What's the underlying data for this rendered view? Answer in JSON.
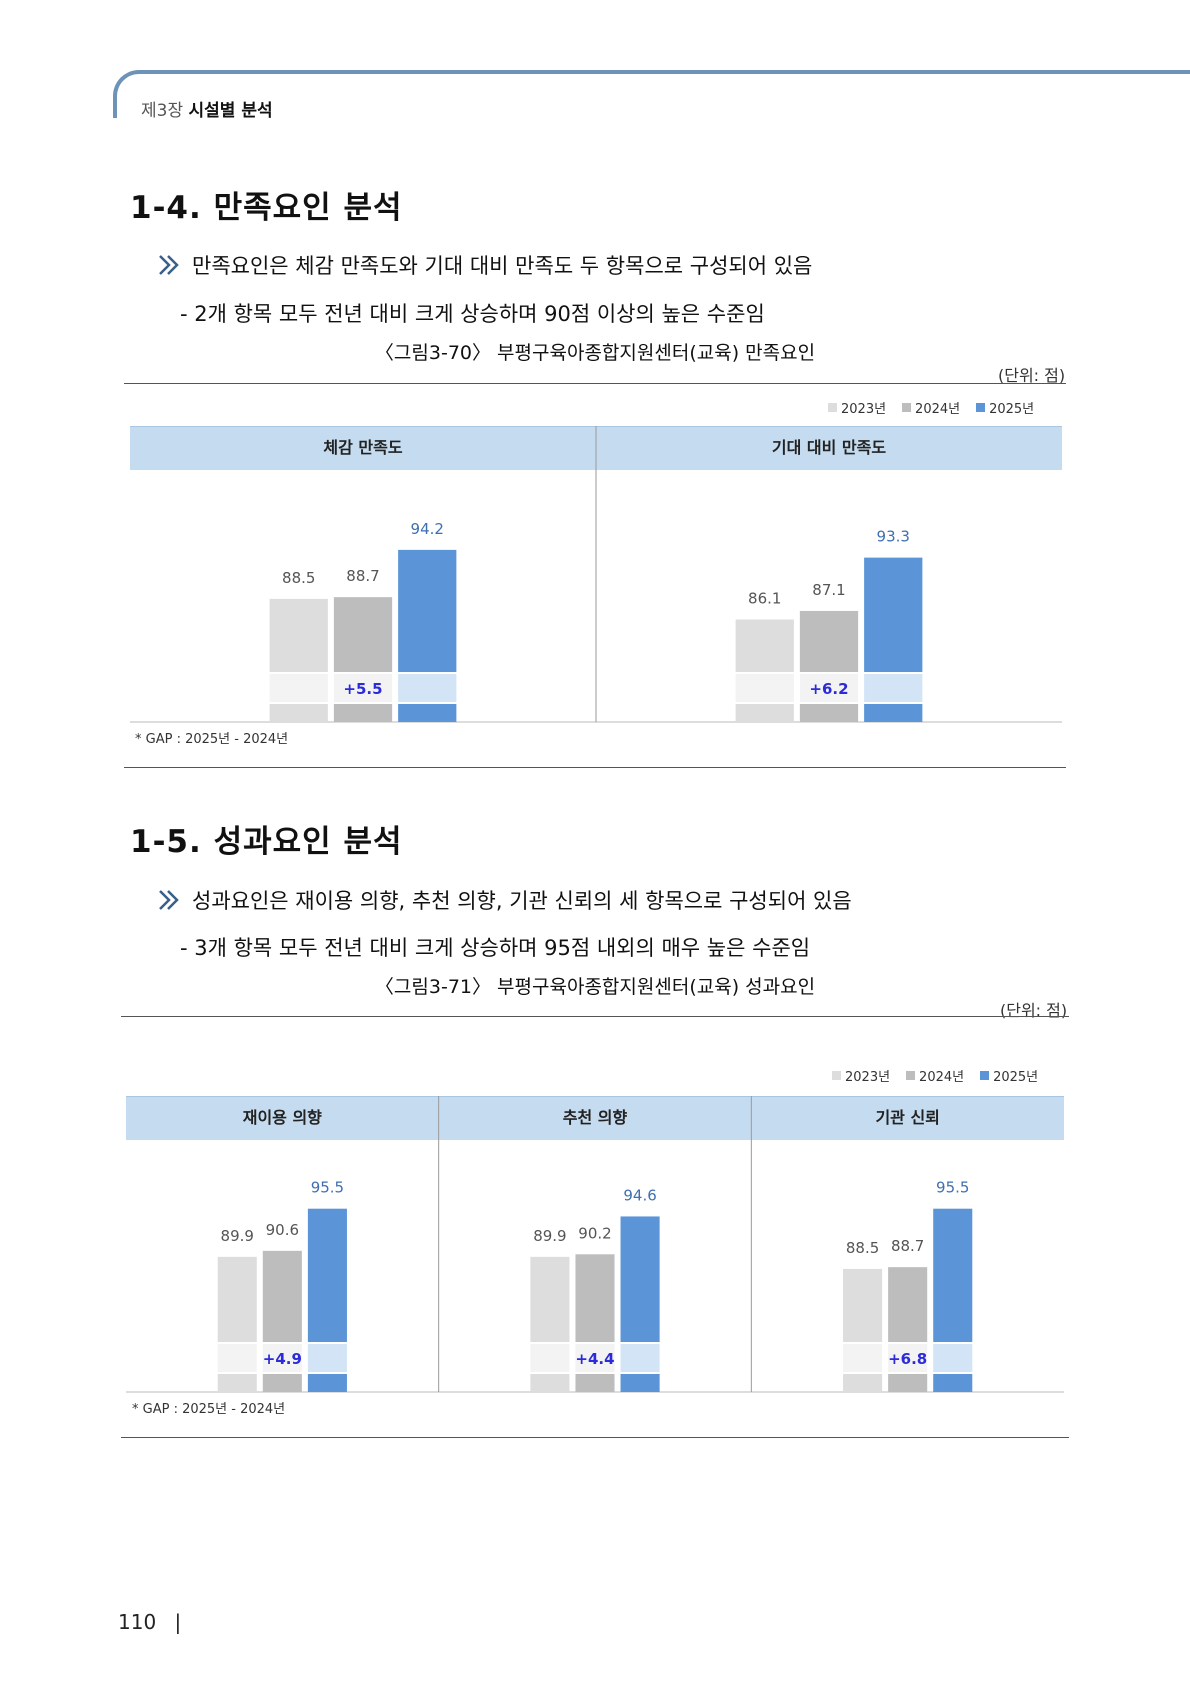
{
  "header": {
    "chapter": "제3장",
    "chapter_title": "시설별 분석"
  },
  "section1": {
    "title": "1-4. 만족요인 분석",
    "bullet": "만족요인은 체감 만족도와 기대 대비 만족도 두 항목으로 구성되어 있음",
    "sub": "- 2개 항목 모두 전년 대비 크게 상승하며 90점 이상의 높은 수준임",
    "caption": "〈그림3-70〉 부평구육아종합지원센터(교육) 만족요인",
    "unit": "(단위: 점)",
    "gap_note": "* GAP : 2025년 - 2024년"
  },
  "section2": {
    "title": "1-5. 성과요인 분석",
    "bullet": "성과요인은 재이용 의향, 추천 의향, 기관 신뢰의 세 항목으로 구성되어 있음",
    "sub": "- 3개 항목 모두 전년 대비 크게 상승하며 95점 내외의 매우 높은 수준임",
    "caption": "〈그림3-71〉 부평구육아종합지원센터(교육) 성과요인",
    "unit": "(단위: 점)",
    "gap_note": "* GAP : 2025년 - 2024년"
  },
  "legend": [
    "2023년",
    "2024년",
    "2025년"
  ],
  "colors": {
    "y2023": "#dddddd",
    "y2024": "#bdbdbd",
    "y2025": "#5b95d8",
    "panel_header": "#c5dcf0",
    "gap_band": "#d3e4f6"
  },
  "chart_data": [
    {
      "type": "bar",
      "series_names": [
        "2023년",
        "2024년",
        "2025년"
      ],
      "groups": [
        {
          "name": "체감 만족도",
          "values": [
            88.5,
            88.7,
            94.2
          ],
          "labels": [
            "88.5",
            "88.7",
            "94.2"
          ],
          "gap": "+5.5"
        },
        {
          "name": "기대 대비 만족도",
          "values": [
            86.1,
            87.1,
            93.3
          ],
          "labels": [
            "86.1",
            "87.1",
            "93.3"
          ],
          "gap": "+6.2"
        }
      ]
    },
    {
      "type": "bar",
      "series_names": [
        "2023년",
        "2024년",
        "2025년"
      ],
      "groups": [
        {
          "name": "재이용 의향",
          "values": [
            89.9,
            90.6,
            95.5
          ],
          "labels": [
            "89.9",
            "90.6",
            "95.5"
          ],
          "gap": "+4.9"
        },
        {
          "name": "추천 의향",
          "values": [
            89.9,
            90.2,
            94.6
          ],
          "labels": [
            "89.9",
            "90.2",
            "94.6"
          ],
          "gap": "+4.4"
        },
        {
          "name": "기관 신뢰",
          "values": [
            88.5,
            88.7,
            95.5
          ],
          "labels": [
            "88.5",
            "88.7",
            "95.5"
          ],
          "gap": "+6.8"
        }
      ]
    }
  ],
  "page_number": "110"
}
